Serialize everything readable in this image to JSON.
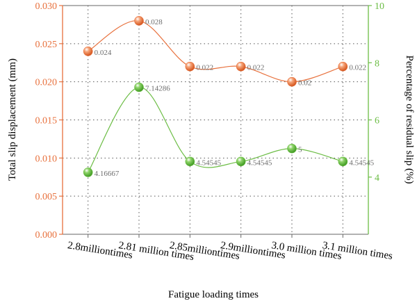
{
  "chart_data": {
    "type": "line",
    "title": "",
    "xlabel": "Fatigue loading times",
    "categories": [
      "2.8milliontimes",
      "2.81 million times",
      "2.85milliontimes",
      "2.9milliontimes",
      "3.0 million times",
      "3.1 million times"
    ],
    "y_left": {
      "label": "Total slip displacement (mm)",
      "range": [
        0.0,
        0.03
      ],
      "ticks": [
        "0.000",
        "0.005",
        "0.010",
        "0.015",
        "0.020",
        "0.025",
        "0.030"
      ],
      "color": "#e8713d"
    },
    "y_right": {
      "label": "Percentage of residual slip (%)",
      "range": [
        2.0,
        10.0
      ],
      "ticks": [
        "4",
        "6",
        "8",
        "10"
      ],
      "color": "#6cbd45"
    },
    "series": [
      {
        "axis": "left",
        "color": "#e8713d",
        "values": [
          0.024,
          0.028,
          0.022,
          0.022,
          0.02,
          0.022
        ],
        "labels": [
          "0.024",
          "0.028",
          "0.022",
          "0.022",
          "0.02",
          "0.022"
        ]
      },
      {
        "axis": "right",
        "color": "#6cbd45",
        "values": [
          4.16667,
          7.14286,
          4.54545,
          4.54545,
          5,
          4.54545
        ],
        "labels": [
          "4.16667",
          "7.14286",
          "4.54545",
          "4.54545",
          "5",
          "4.54545"
        ]
      }
    ],
    "grid": true,
    "grid_style": "dotted"
  }
}
